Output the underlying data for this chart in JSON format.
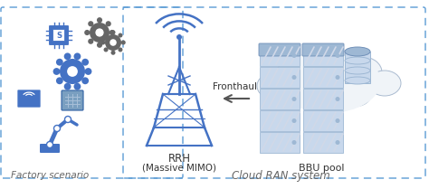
{
  "bg_color": "#ffffff",
  "border_color": "#5b9bd5",
  "factory_label": "Factory scenario",
  "cloud_ran_label": "Cloud RAN system",
  "rrh_label": "RRH\n(Massive MIMO)",
  "bbu_label": "BBU pool",
  "fronthaul_label": "Fronthaul",
  "icon_color": "#4472c4",
  "icon_dark": "#2e5fa3",
  "gear_color": "#555555",
  "server_light": "#c8d8ec",
  "server_mid": "#9eb8d4",
  "server_dark": "#7090b8",
  "server_stripe": "#d0d8e8",
  "cloud_fill": "#f0f4f8",
  "cloud_edge": "#aabbd0",
  "db_color": "#8eaacc",
  "arrow_color": "#555555",
  "text_color": "#333333",
  "label_color": "#666666"
}
